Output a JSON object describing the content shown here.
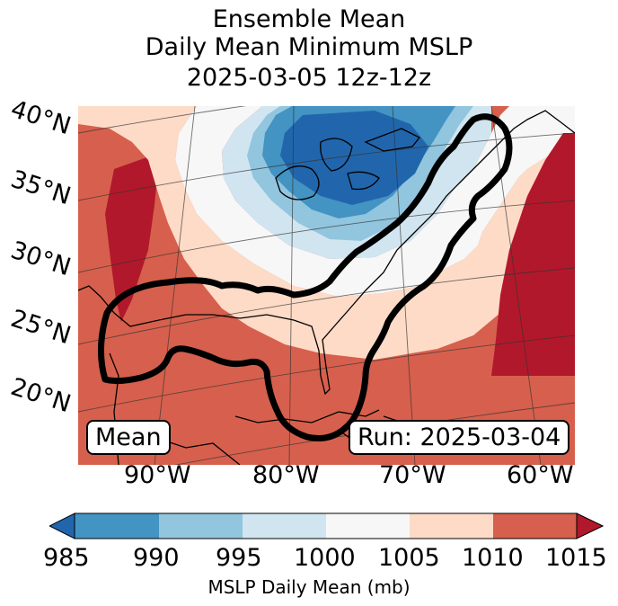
{
  "title": {
    "line1": "Ensemble Mean",
    "line2": "Daily Mean Minimum MSLP",
    "line3": "2025-03-05 12z-12z"
  },
  "map": {
    "lat_labels": [
      "40°N",
      "35°N",
      "30°N",
      "25°N",
      "20°N"
    ],
    "lon_labels": [
      "90°W",
      "80°W",
      "70°W",
      "60°W"
    ],
    "mean_label": "Mean",
    "run_label": "Run: 2025-03-04"
  },
  "colorbar": {
    "ticks": [
      "985",
      "990",
      "995",
      "1000",
      "1005",
      "1010",
      "1015"
    ],
    "label": "MSLP Daily Mean (mb)",
    "colors": [
      "#2166ac",
      "#4393c3",
      "#92c5de",
      "#d1e5f0",
      "#f7f7f7",
      "#fddbc7",
      "#d6604d",
      "#b2182b"
    ]
  }
}
